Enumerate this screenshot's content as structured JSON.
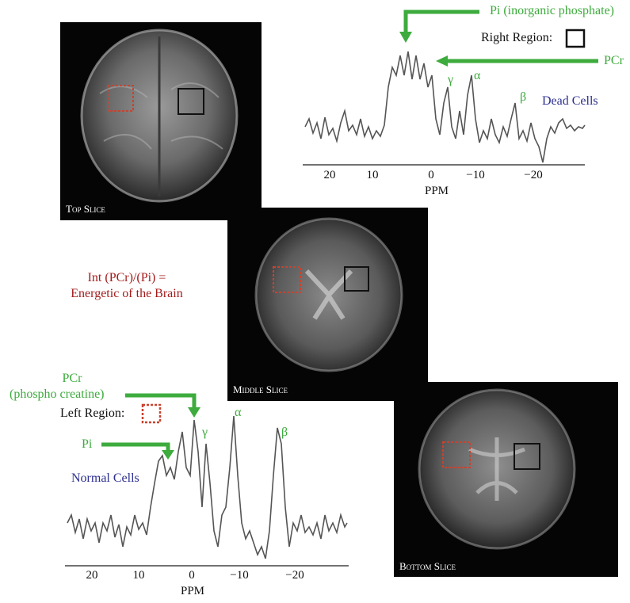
{
  "colors": {
    "annotation_green": "#3dab3d",
    "cells_blue": "#2c2f8f",
    "formula_red": "#a31c1c",
    "left_region_box": "#c8432f",
    "right_region_box": "#111111"
  },
  "slices": {
    "top": "Top Slice",
    "middle": "Middle Slice",
    "bottom": "Bottom Slice"
  },
  "formula": {
    "line1": "Int (PCr)/(Pi) =",
    "line2": "Energetic of the Brain"
  },
  "right_spectrum": {
    "pi_label": "Pi (inorganic phosphate)",
    "region_label": "Right Region:",
    "pcr_label": "PCr",
    "gamma": "γ",
    "alpha": "α",
    "beta": "β",
    "cells_label": "Dead Cells",
    "ticks": [
      "20",
      "10",
      "0",
      "−10",
      "−20"
    ],
    "xlabel": "PPM"
  },
  "left_spectrum": {
    "pcr_label_line1": "PCr",
    "pcr_label_line2": "(phospho creatine)",
    "region_label": "Left Region:",
    "pi_label": "Pi",
    "gamma": "γ",
    "alpha": "α",
    "beta": "β",
    "cells_label": "Normal Cells",
    "ticks": [
      "20",
      "10",
      "0",
      "−10",
      "−20"
    ],
    "xlabel": "PPM"
  }
}
